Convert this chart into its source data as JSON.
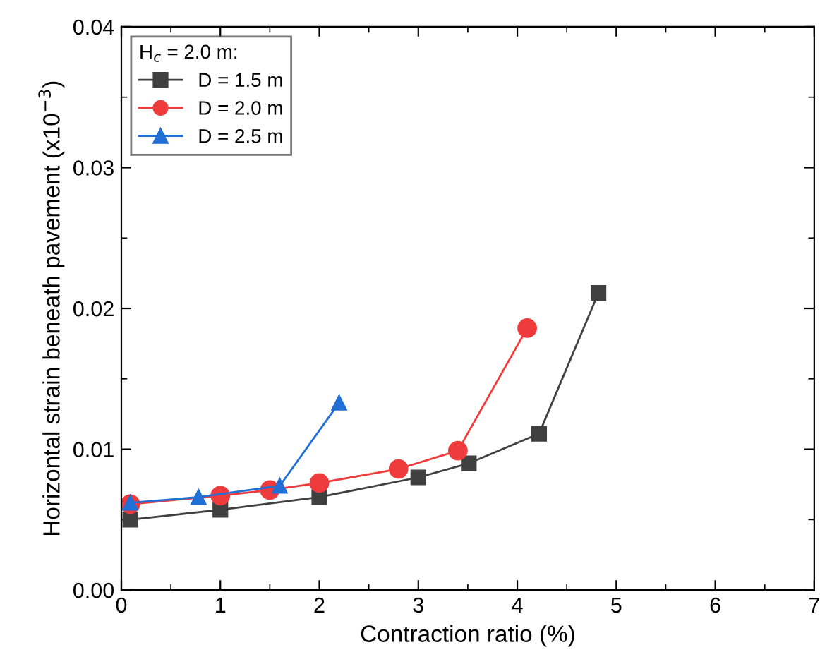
{
  "chart_data": {
    "type": "line",
    "xlabel": "Contraction ratio (%)",
    "ylabel": "Horizontal strain beneath pavement (x10$^{−3}$)",
    "legend_title": "H$_{c}$ = 2.0 m:",
    "legend": "top left",
    "grid": false,
    "xlim": [
      0,
      7
    ],
    "xticks": [
      0,
      1,
      2,
      3,
      4,
      5,
      6,
      7
    ],
    "ylim": [
      0,
      0.04
    ],
    "yticks": [
      {
        "value": 0,
        "label": "0.00"
      },
      {
        "value": 0.01,
        "label": "0.01"
      },
      {
        "value": 0.02,
        "label": "0.02"
      },
      {
        "value": 0.03,
        "label": "0.03"
      },
      {
        "value": 0.04,
        "label": "0.04"
      }
    ],
    "series": [
      {
        "name": "D = 1.5 m",
        "color": "#404040",
        "marker": "square",
        "x": [
          0.09,
          1.0,
          2.0,
          3.0,
          3.51,
          4.22,
          4.82
        ],
        "values": [
          0.005,
          0.0057,
          0.0066,
          0.008,
          0.009,
          0.0111,
          0.0211
        ]
      },
      {
        "name": "D = 2.0 m",
        "color": "#ef3b3b",
        "marker": "circle",
        "x": [
          0.09,
          1.0,
          1.5,
          2.0,
          2.8,
          3.4,
          4.1
        ],
        "values": [
          0.0061,
          0.0067,
          0.0071,
          0.0076,
          0.0086,
          0.0099,
          0.0186
        ]
      },
      {
        "name": "D = 2.5 m",
        "color": "#1f6fd6",
        "marker": "triangle",
        "x": [
          0.09,
          0.78,
          1.6,
          2.2
        ],
        "values": [
          0.0062,
          0.0066,
          0.0074,
          0.0133
        ]
      }
    ]
  }
}
